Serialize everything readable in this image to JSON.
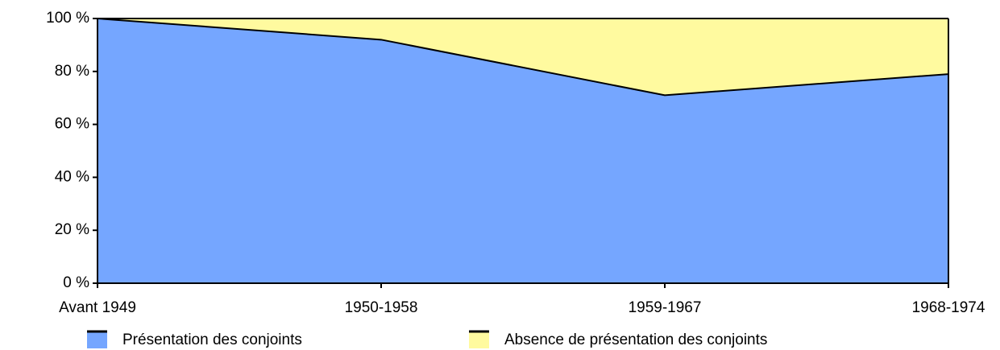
{
  "chart_data": {
    "type": "stacked_area",
    "categories": [
      "Avant 1949",
      "1950-1958",
      "1959-1967",
      "1968-1974"
    ],
    "series": [
      {
        "name": "Présentation des conjoints",
        "color": "#75a6ff",
        "values": [
          100,
          92,
          71,
          79
        ]
      },
      {
        "name": "Absence de présentation des conjoints",
        "color": "#fffa9f",
        "values": [
          0,
          8,
          29,
          21
        ]
      }
    ],
    "ylim": [
      0,
      100
    ],
    "yticks": [
      {
        "value": 0,
        "label": "0 %"
      },
      {
        "value": 20,
        "label": "20 %"
      },
      {
        "value": 40,
        "label": "40 %"
      },
      {
        "value": 60,
        "label": "60 %"
      },
      {
        "value": 80,
        "label": "80 %"
      },
      {
        "value": 100,
        "label": "100 %"
      }
    ],
    "legend": "bottom"
  }
}
